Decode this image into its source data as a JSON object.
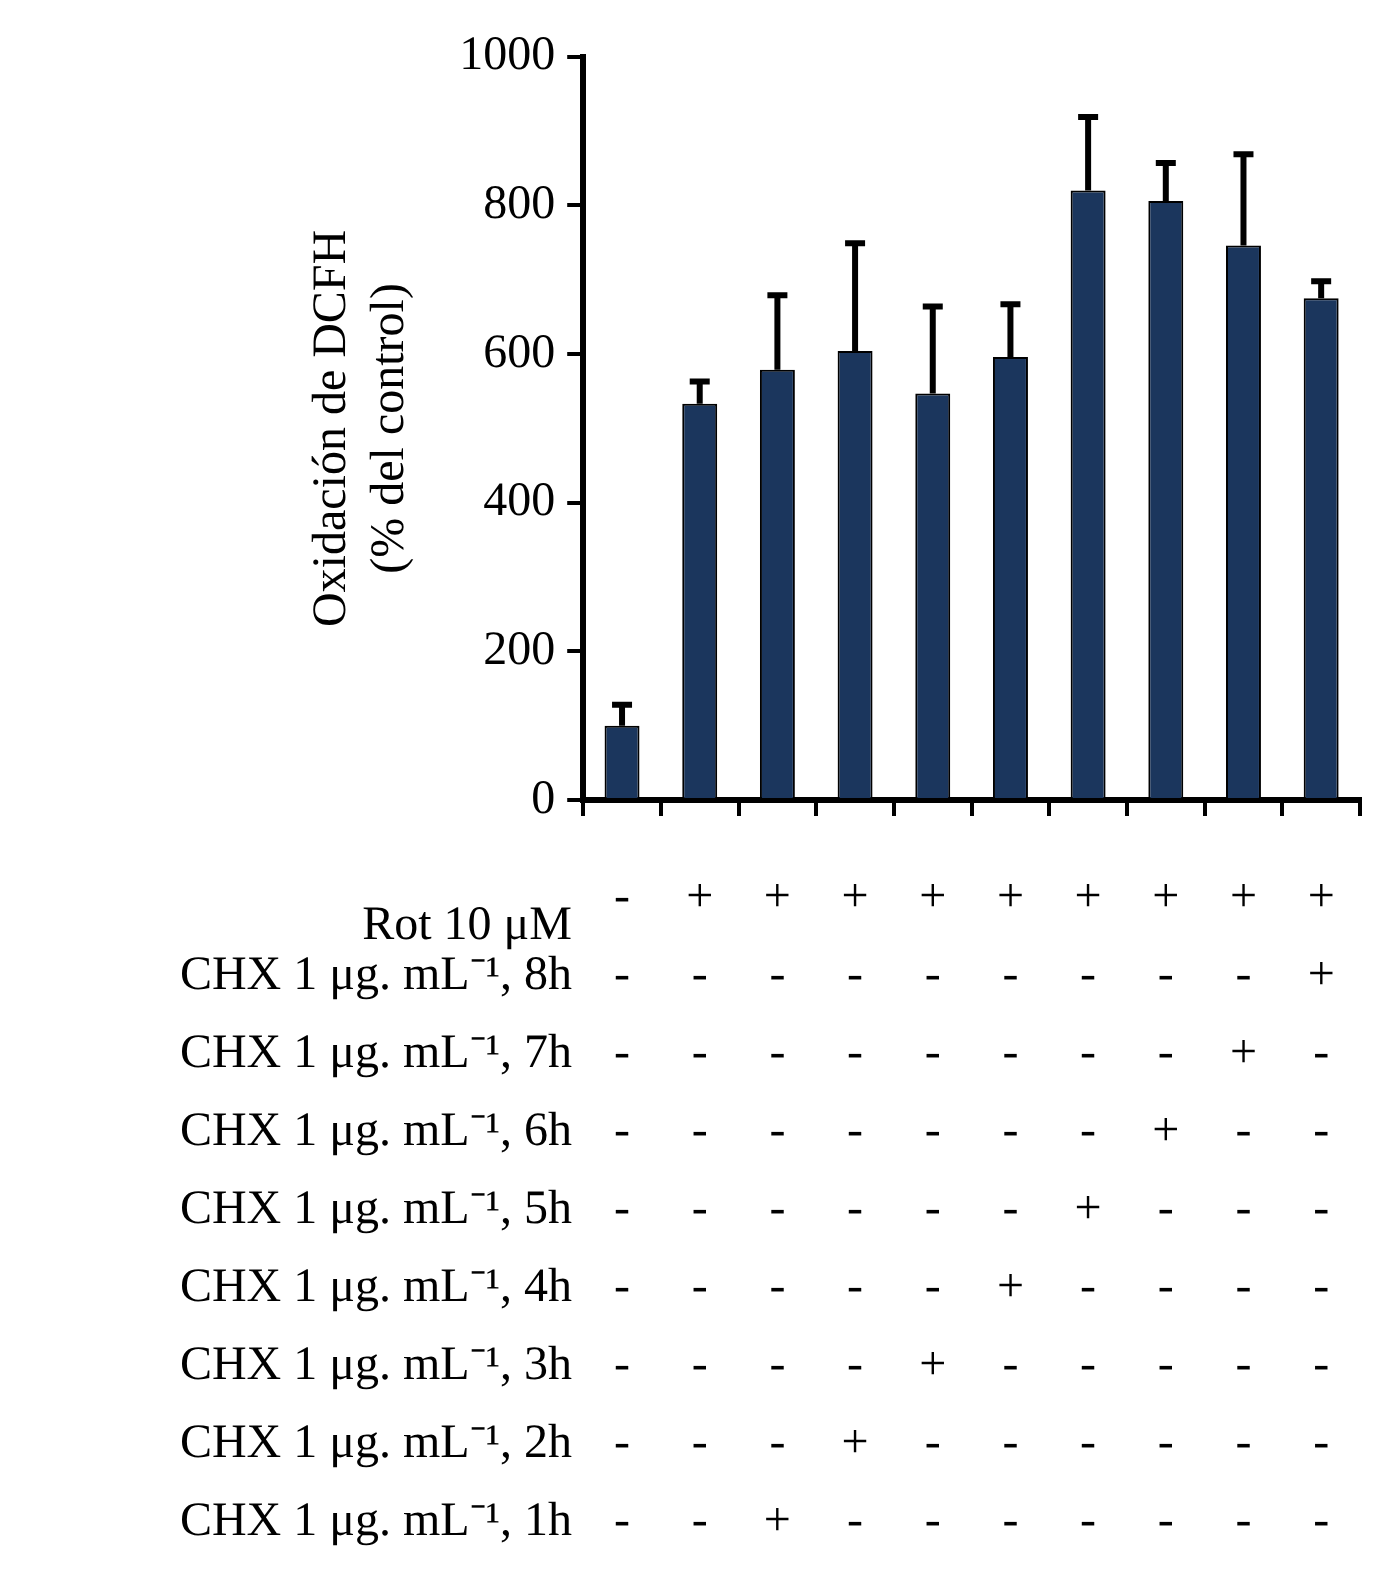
{
  "chart_data": {
    "type": "bar",
    "ylabel": "Oxidación de DCFH\n(% del control)",
    "categories": [
      "-\n-\n-\n-\n-\n-\n-\n-\n-",
      "+\n-\n-\n-\n-\n-\n-\n-\n-",
      "+\n-\n-\n-\n-\n-\n-\n-\n+",
      "+\n-\n-\n-\n-\n-\n-\n+\n-",
      "+\n-\n-\n-\n-\n-\n+\n-\n-",
      "+\n-\n-\n-\n-\n+\n-\n-\n-",
      "+\n-\n-\n-\n+\n-\n-\n-\n-",
      "+\n-\n-\n+\n-\n-\n-\n-\n-",
      "+\n-\n+\n-\n-\n-\n-\n-\n-",
      "+\n+\n-\n-\n-\n-\n-\n-\n-"
    ],
    "values": [
      100,
      533,
      579,
      604,
      547,
      596,
      820,
      806,
      746,
      675
    ],
    "errors": [
      [
        100,
        128
      ],
      [
        533,
        563
      ],
      [
        579,
        679
      ],
      [
        604,
        749
      ],
      [
        547,
        664
      ],
      [
        596,
        667
      ],
      [
        820,
        919
      ],
      [
        806,
        857
      ],
      [
        746,
        869
      ],
      [
        675,
        698
      ]
    ],
    "color": "#1b365d",
    "ylim": [
      0,
      1000
    ],
    "yticks": [
      0,
      200,
      400,
      600,
      800,
      1000
    ],
    "grid": false,
    "legend": false,
    "annotations": [
      "Rot 10 μM",
      "CHX 1 μg. mL⁻¹, 8h",
      "CHX 1 μg. mL⁻¹, 7h",
      "CHX 1 μg. mL⁻¹, 6h",
      "CHX 1 μg. mL⁻¹, 5h",
      "CHX 1 μg. mL⁻¹, 4h",
      "CHX 1 μg. mL⁻¹, 3h",
      "CHX 1 μg. mL⁻¹, 2h",
      "CHX 1 μg. mL⁻¹, 1h"
    ]
  }
}
